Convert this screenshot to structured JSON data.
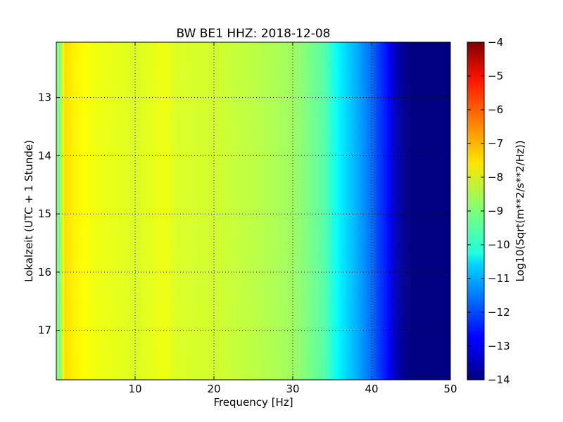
{
  "chart_data": {
    "type": "heatmap",
    "title": "BW BE1 HHZ: 2018-12-08",
    "xlabel": "Frequency [Hz]",
    "ylabel": "Lokalzeit (UTC + 1 Stunde)",
    "colorbar_label": "Log10(Sqrt(m**2/s**2/Hz))",
    "xlim": [
      0,
      50
    ],
    "ylim": [
      12.05,
      17.85
    ],
    "y_inverted": true,
    "x_ticks": [
      10,
      20,
      30,
      40,
      50
    ],
    "y_ticks": [
      13,
      14,
      15,
      16,
      17
    ],
    "clim": [
      -14,
      -4
    ],
    "colorbar_ticks": [
      -4,
      -5,
      -6,
      -7,
      -8,
      -9,
      -10,
      -11,
      -12,
      -13,
      -14
    ],
    "colormap": "jet",
    "grid": true,
    "x": [
      0.5,
      1,
      2,
      3,
      5,
      8,
      10,
      14,
      15,
      20,
      25,
      30,
      34,
      36,
      38,
      40,
      41,
      42,
      43,
      44,
      45,
      50
    ],
    "spectrum_profile": [
      -9.0,
      -7.4,
      -7.6,
      -7.7,
      -7.9,
      -8.0,
      -8.1,
      -7.9,
      -8.1,
      -8.2,
      -8.4,
      -8.7,
      -9.4,
      -10.4,
      -11.0,
      -11.7,
      -12.2,
      -12.6,
      -13.4,
      -13.8,
      -14.0,
      -14.0
    ],
    "time_profile": {
      "hours": [
        12.05,
        13.55,
        14.1,
        15.0,
        15.3,
        15.6,
        16.12,
        16.28,
        17.85
      ],
      "offset_db": [
        0.0,
        0.4,
        0.3,
        0.3,
        0.4,
        0.3,
        0.5,
        0.4,
        0.0
      ]
    }
  }
}
